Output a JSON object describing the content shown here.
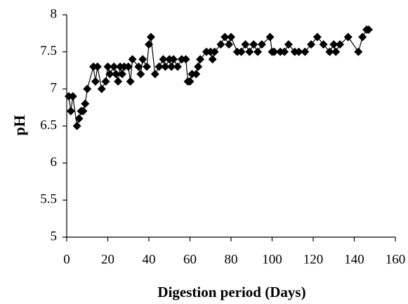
{
  "chart_data": {
    "type": "line",
    "x_label": "Digestion period (Days)",
    "y_label": "pH",
    "color": "#000000",
    "x": [
      1,
      2,
      3,
      5,
      6,
      7,
      8,
      9,
      10,
      13,
      14,
      15,
      17,
      19,
      20,
      21,
      23,
      24,
      25,
      26,
      27,
      28,
      30,
      31,
      32,
      35,
      36,
      37,
      39,
      40,
      41,
      43,
      45,
      47,
      48,
      50,
      51,
      52,
      54,
      56,
      58,
      59,
      60,
      61,
      63,
      64,
      65,
      68,
      70,
      71,
      72,
      75,
      77,
      79,
      80,
      83,
      85,
      87,
      89,
      91,
      93,
      95,
      99,
      100,
      101,
      104,
      106,
      108,
      111,
      113,
      116,
      119,
      122,
      125,
      128,
      130,
      131,
      133,
      137,
      142,
      144,
      146,
      147
    ],
    "values": [
      6.9,
      6.7,
      6.9,
      6.5,
      6.6,
      6.7,
      6.7,
      6.8,
      7.0,
      7.3,
      7.1,
      7.3,
      7.0,
      7.1,
      7.3,
      7.2,
      7.3,
      7.2,
      7.1,
      7.3,
      7.2,
      7.3,
      7.3,
      7.1,
      7.4,
      7.3,
      7.2,
      7.4,
      7.3,
      7.6,
      7.7,
      7.2,
      7.3,
      7.4,
      7.3,
      7.4,
      7.3,
      7.4,
      7.3,
      7.4,
      7.4,
      7.1,
      7.1,
      7.2,
      7.2,
      7.3,
      7.4,
      7.5,
      7.5,
      7.4,
      7.5,
      7.6,
      7.7,
      7.6,
      7.7,
      7.5,
      7.5,
      7.6,
      7.5,
      7.6,
      7.5,
      7.6,
      7.7,
      7.5,
      7.5,
      7.5,
      7.5,
      7.6,
      7.5,
      7.5,
      7.5,
      7.6,
      7.7,
      7.6,
      7.5,
      7.6,
      7.5,
      7.6,
      7.7,
      7.5,
      7.7,
      7.8,
      7.8
    ],
    "xlim": [
      0,
      160
    ],
    "xticks": [
      0,
      20,
      40,
      60,
      80,
      100,
      120,
      140,
      160
    ],
    "ylim": [
      5,
      8
    ],
    "yticks": [
      5,
      5.5,
      6,
      6.5,
      7,
      7.5,
      8
    ],
    "grid": false
  }
}
